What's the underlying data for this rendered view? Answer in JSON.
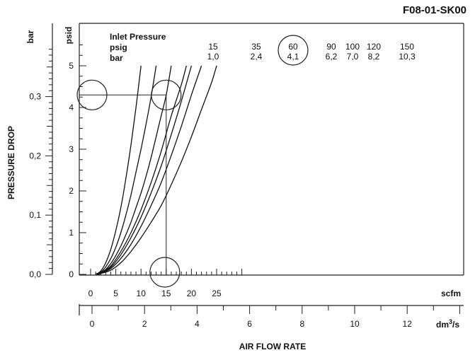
{
  "chart_data": {
    "type": "line",
    "figure_id": "F08-01-SK00",
    "ylabel": "PRESSURE DROP",
    "xlabel": "AIR FLOW RATE",
    "units": {
      "psid": "psid",
      "bar": "bar",
      "scfm": "scfm",
      "dm3s_base": "dm",
      "dm3s_exp": "3",
      "dm3s_tail": "/s"
    },
    "axes": {
      "psid": {
        "range": [
          0,
          5.5
        ],
        "ticks": [
          "0",
          "1",
          "2",
          "3",
          "4",
          "5"
        ]
      },
      "bar": {
        "range": [
          0,
          0.38
        ],
        "ticks": [
          "0,0",
          "0,1",
          "0,2",
          "0,3"
        ]
      },
      "scfm": {
        "range": [
          0,
          30
        ],
        "ticks": [
          "0",
          "5",
          "10",
          "15",
          "20",
          "25"
        ]
      },
      "dm3s": {
        "range": [
          0,
          14
        ],
        "ticks": [
          "0",
          "2",
          "4",
          "6",
          "8",
          "10",
          "12"
        ]
      }
    },
    "legend": {
      "heading": "Inlet Pressure",
      "row_psig": "psig",
      "row_bar": "bar"
    },
    "series": [
      {
        "psig": "15",
        "bar": "1,0",
        "points": [
          [
            1,
            0
          ],
          [
            2,
            0.08
          ],
          [
            3,
            0.28
          ],
          [
            4,
            0.6
          ],
          [
            5,
            1.05
          ],
          [
            6,
            1.6
          ],
          [
            7,
            2.3
          ],
          [
            8,
            3.1
          ],
          [
            9,
            4.0
          ],
          [
            10,
            5.0
          ]
        ]
      },
      {
        "psig": "35",
        "bar": "2,4",
        "points": [
          [
            1.2,
            0
          ],
          [
            2,
            0.05
          ],
          [
            3,
            0.18
          ],
          [
            4,
            0.38
          ],
          [
            5,
            0.65
          ],
          [
            6,
            1.0
          ],
          [
            7,
            1.42
          ],
          [
            8,
            1.9
          ],
          [
            9,
            2.45
          ],
          [
            10,
            3.0
          ],
          [
            11,
            3.6
          ],
          [
            12,
            4.25
          ],
          [
            13,
            5.0
          ]
        ]
      },
      {
        "psig": "60",
        "bar": "4,1",
        "points": [
          [
            1.3,
            0
          ],
          [
            2,
            0.04
          ],
          [
            3,
            0.12
          ],
          [
            4,
            0.26
          ],
          [
            5,
            0.45
          ],
          [
            6,
            0.68
          ],
          [
            7,
            0.95
          ],
          [
            8,
            1.25
          ],
          [
            9,
            1.6
          ],
          [
            10,
            1.95
          ],
          [
            11,
            2.35
          ],
          [
            12,
            2.8
          ],
          [
            13,
            3.3
          ],
          [
            14,
            3.8
          ],
          [
            15,
            4.3
          ],
          [
            16,
            5.0
          ]
        ]
      },
      {
        "psig": "90",
        "bar": "6,2",
        "points": [
          [
            1.4,
            0
          ],
          [
            2,
            0.03
          ],
          [
            4,
            0.2
          ],
          [
            6,
            0.55
          ],
          [
            8,
            1.0
          ],
          [
            10,
            1.55
          ],
          [
            12,
            2.2
          ],
          [
            14,
            2.95
          ],
          [
            16,
            3.8
          ],
          [
            18,
            4.55
          ],
          [
            19,
            5.0
          ]
        ]
      },
      {
        "psig": "100",
        "bar": "7,0",
        "points": [
          [
            1.4,
            0
          ],
          [
            2,
            0.03
          ],
          [
            4,
            0.17
          ],
          [
            6,
            0.47
          ],
          [
            8,
            0.88
          ],
          [
            10,
            1.37
          ],
          [
            12,
            1.95
          ],
          [
            14,
            2.6
          ],
          [
            16,
            3.35
          ],
          [
            18,
            4.15
          ],
          [
            20,
            5.0
          ]
        ]
      },
      {
        "psig": "120",
        "bar": "8,2",
        "points": [
          [
            1.5,
            0
          ],
          [
            2,
            0.02
          ],
          [
            4,
            0.14
          ],
          [
            6,
            0.38
          ],
          [
            8,
            0.72
          ],
          [
            10,
            1.15
          ],
          [
            12,
            1.65
          ],
          [
            14,
            2.2
          ],
          [
            16,
            2.85
          ],
          [
            18,
            3.55
          ],
          [
            20,
            4.3
          ],
          [
            22,
            5.0
          ]
        ]
      },
      {
        "psig": "150",
        "bar": "10,3",
        "points": [
          [
            1.6,
            0
          ],
          [
            2,
            0.02
          ],
          [
            4,
            0.1
          ],
          [
            6,
            0.28
          ],
          [
            8,
            0.55
          ],
          [
            10,
            0.88
          ],
          [
            12,
            1.25
          ],
          [
            14,
            1.65
          ],
          [
            16,
            2.15
          ],
          [
            18,
            2.7
          ],
          [
            20,
            3.3
          ],
          [
            22,
            3.95
          ],
          [
            24,
            4.6
          ],
          [
            25,
            5.0
          ]
        ]
      }
    ],
    "reference": {
      "flow_scfm": 15,
      "pressure_psid": 4.3,
      "circled_series": "60"
    }
  }
}
